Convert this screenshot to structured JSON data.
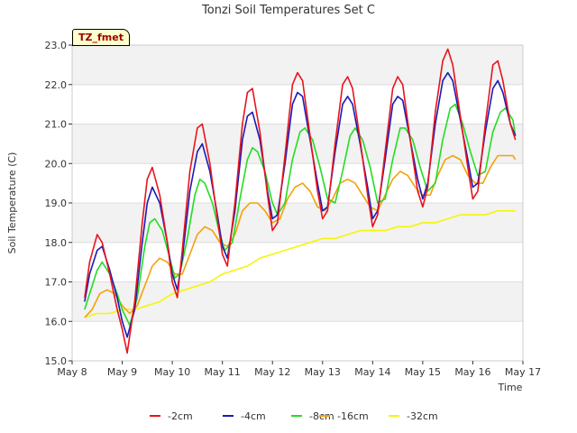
{
  "chart_data": {
    "type": "line",
    "title": "Tonzi Soil Temperatures Set C",
    "xlabel": "Time",
    "ylabel": "Soil Temperature (C)",
    "site_tag": "TZ_fmet",
    "ylim": [
      15.0,
      23.0
    ],
    "xlim": [
      8.0,
      17.0
    ],
    "y_ticks": [
      "15.0",
      "16.0",
      "17.0",
      "18.0",
      "19.0",
      "20.0",
      "21.0",
      "22.0",
      "23.0"
    ],
    "x_ticks": [
      "May 8",
      "May 9",
      "May 10",
      "May 11",
      "May 12",
      "May 13",
      "May 14",
      "May 15",
      "May 16",
      "May 17"
    ],
    "legend_position": "bottom",
    "grid": true,
    "series": [
      {
        "name": "-2cm",
        "color": "#e8141c",
        "x": [
          8.25,
          8.35,
          8.5,
          8.6,
          8.75,
          8.9,
          9.0,
          9.1,
          9.25,
          9.4,
          9.5,
          9.6,
          9.75,
          9.9,
          10.0,
          10.1,
          10.2,
          10.35,
          10.5,
          10.6,
          10.75,
          10.9,
          11.0,
          11.1,
          11.25,
          11.4,
          11.5,
          11.6,
          11.75,
          11.9,
          12.0,
          12.1,
          12.25,
          12.4,
          12.5,
          12.6,
          12.75,
          12.9,
          13.0,
          13.1,
          13.25,
          13.4,
          13.5,
          13.6,
          13.75,
          13.9,
          14.0,
          14.1,
          14.25,
          14.4,
          14.5,
          14.6,
          14.75,
          14.9,
          15.0,
          15.1,
          15.25,
          15.4,
          15.5,
          15.6,
          15.75,
          15.9,
          16.0,
          16.1,
          16.25,
          16.4,
          16.5,
          16.6,
          16.75,
          16.85
        ],
        "values": [
          16.6,
          17.5,
          18.2,
          18.0,
          17.2,
          16.3,
          15.8,
          15.2,
          16.5,
          18.5,
          19.6,
          19.9,
          19.2,
          18.0,
          17.0,
          16.6,
          17.8,
          19.8,
          20.9,
          21.0,
          20.0,
          18.6,
          17.7,
          17.4,
          19.0,
          21.0,
          21.8,
          21.9,
          20.8,
          19.2,
          18.3,
          18.5,
          20.2,
          22.0,
          22.3,
          22.1,
          20.7,
          19.3,
          18.6,
          18.8,
          20.5,
          22.0,
          22.2,
          21.9,
          20.6,
          19.2,
          18.4,
          18.7,
          20.3,
          21.9,
          22.2,
          22.0,
          20.6,
          19.3,
          18.9,
          19.4,
          21.3,
          22.6,
          22.9,
          22.5,
          21.2,
          19.9,
          19.1,
          19.3,
          21.0,
          22.5,
          22.6,
          22.1,
          21.0,
          20.6
        ]
      },
      {
        "name": "-4cm",
        "color": "#1a1ab8",
        "x": [
          8.25,
          8.35,
          8.5,
          8.6,
          8.75,
          8.9,
          9.0,
          9.1,
          9.25,
          9.4,
          9.5,
          9.6,
          9.75,
          9.9,
          10.0,
          10.1,
          10.2,
          10.35,
          10.5,
          10.6,
          10.75,
          10.9,
          11.0,
          11.1,
          11.25,
          11.4,
          11.5,
          11.6,
          11.75,
          11.9,
          12.0,
          12.1,
          12.25,
          12.4,
          12.5,
          12.6,
          12.75,
          12.9,
          13.0,
          13.1,
          13.25,
          13.4,
          13.5,
          13.6,
          13.75,
          13.9,
          14.0,
          14.1,
          14.25,
          14.4,
          14.5,
          14.6,
          14.75,
          14.9,
          15.0,
          15.1,
          15.25,
          15.4,
          15.5,
          15.6,
          15.75,
          15.9,
          16.0,
          16.1,
          16.25,
          16.4,
          16.5,
          16.6,
          16.75,
          16.85
        ],
        "values": [
          16.5,
          17.2,
          17.8,
          17.9,
          17.3,
          16.6,
          16.0,
          15.6,
          16.3,
          18.0,
          19.0,
          19.4,
          19.0,
          18.0,
          17.2,
          16.8,
          17.6,
          19.3,
          20.3,
          20.5,
          19.8,
          18.7,
          17.9,
          17.6,
          18.8,
          20.6,
          21.2,
          21.3,
          20.6,
          19.3,
          18.6,
          18.7,
          20.0,
          21.5,
          21.8,
          21.7,
          20.6,
          19.5,
          18.8,
          18.9,
          20.3,
          21.5,
          21.7,
          21.5,
          20.5,
          19.4,
          18.6,
          18.8,
          20.1,
          21.5,
          21.7,
          21.6,
          20.6,
          19.6,
          19.1,
          19.5,
          21.0,
          22.1,
          22.3,
          22.1,
          21.1,
          20.1,
          19.4,
          19.5,
          20.8,
          21.9,
          22.1,
          21.8,
          21.0,
          20.7
        ]
      },
      {
        "name": "-8cm",
        "color": "#22dd22",
        "x": [
          8.25,
          8.35,
          8.5,
          8.6,
          8.75,
          8.9,
          9.0,
          9.15,
          9.3,
          9.45,
          9.55,
          9.65,
          9.8,
          9.95,
          10.05,
          10.15,
          10.3,
          10.45,
          10.55,
          10.65,
          10.8,
          10.95,
          11.05,
          11.2,
          11.35,
          11.5,
          11.6,
          11.7,
          11.85,
          12.0,
          12.1,
          12.25,
          12.4,
          12.55,
          12.65,
          12.8,
          12.95,
          13.1,
          13.25,
          13.4,
          13.55,
          13.65,
          13.8,
          13.95,
          14.1,
          14.25,
          14.4,
          14.55,
          14.65,
          14.8,
          14.95,
          15.1,
          15.25,
          15.4,
          15.55,
          15.65,
          15.8,
          15.95,
          16.1,
          16.25,
          16.4,
          16.55,
          16.65,
          16.8,
          16.85
        ],
        "values": [
          16.3,
          16.7,
          17.3,
          17.5,
          17.2,
          16.7,
          16.3,
          15.9,
          16.6,
          17.9,
          18.5,
          18.6,
          18.3,
          17.6,
          17.1,
          17.2,
          18.1,
          19.2,
          19.6,
          19.5,
          19.0,
          18.2,
          17.8,
          18.0,
          19.1,
          20.1,
          20.4,
          20.3,
          19.8,
          19.0,
          18.7,
          19.0,
          20.1,
          20.8,
          20.9,
          20.6,
          19.9,
          19.1,
          19.0,
          19.8,
          20.7,
          20.9,
          20.6,
          19.9,
          19.0,
          19.1,
          20.1,
          20.9,
          20.9,
          20.6,
          19.9,
          19.3,
          19.5,
          20.6,
          21.4,
          21.5,
          21.0,
          20.3,
          19.7,
          19.8,
          20.8,
          21.3,
          21.4,
          21.1,
          20.7
        ]
      },
      {
        "name": "-16cm",
        "color": "#f5a00a",
        "x": [
          8.25,
          8.4,
          8.55,
          8.7,
          8.85,
          9.0,
          9.15,
          9.3,
          9.45,
          9.6,
          9.75,
          9.9,
          10.05,
          10.2,
          10.35,
          10.5,
          10.65,
          10.8,
          10.95,
          11.1,
          11.25,
          11.4,
          11.55,
          11.7,
          11.85,
          12.0,
          12.15,
          12.3,
          12.45,
          12.6,
          12.75,
          12.9,
          13.05,
          13.2,
          13.35,
          13.5,
          13.65,
          13.8,
          13.95,
          14.1,
          14.25,
          14.4,
          14.55,
          14.7,
          14.85,
          15.0,
          15.15,
          15.3,
          15.45,
          15.6,
          15.75,
          15.9,
          16.05,
          16.2,
          16.35,
          16.5,
          16.65,
          16.8,
          16.85
        ],
        "values": [
          16.1,
          16.3,
          16.7,
          16.8,
          16.7,
          16.4,
          16.2,
          16.4,
          16.9,
          17.4,
          17.6,
          17.5,
          17.2,
          17.2,
          17.7,
          18.2,
          18.4,
          18.3,
          18.0,
          17.9,
          18.2,
          18.8,
          19.0,
          19.0,
          18.8,
          18.5,
          18.6,
          19.1,
          19.4,
          19.5,
          19.3,
          18.9,
          18.8,
          19.1,
          19.5,
          19.6,
          19.5,
          19.2,
          18.9,
          18.8,
          19.2,
          19.6,
          19.8,
          19.7,
          19.4,
          19.2,
          19.2,
          19.7,
          20.1,
          20.2,
          20.1,
          19.7,
          19.5,
          19.5,
          19.9,
          20.2,
          20.2,
          20.2,
          20.1
        ]
      },
      {
        "name": "-32cm",
        "color": "#f5f50a",
        "x": [
          8.25,
          8.5,
          8.75,
          9.0,
          9.25,
          9.5,
          9.75,
          10.0,
          10.25,
          10.5,
          10.75,
          11.0,
          11.25,
          11.5,
          11.75,
          12.0,
          12.25,
          12.5,
          12.75,
          13.0,
          13.25,
          13.5,
          13.75,
          14.0,
          14.25,
          14.5,
          14.75,
          15.0,
          15.25,
          15.5,
          15.75,
          16.0,
          16.25,
          16.5,
          16.85
        ],
        "values": [
          16.1,
          16.2,
          16.2,
          16.3,
          16.3,
          16.4,
          16.5,
          16.7,
          16.8,
          16.9,
          17.0,
          17.2,
          17.3,
          17.4,
          17.6,
          17.7,
          17.8,
          17.9,
          18.0,
          18.1,
          18.1,
          18.2,
          18.3,
          18.3,
          18.3,
          18.4,
          18.4,
          18.5,
          18.5,
          18.6,
          18.7,
          18.7,
          18.7,
          18.8,
          18.8
        ]
      }
    ]
  }
}
